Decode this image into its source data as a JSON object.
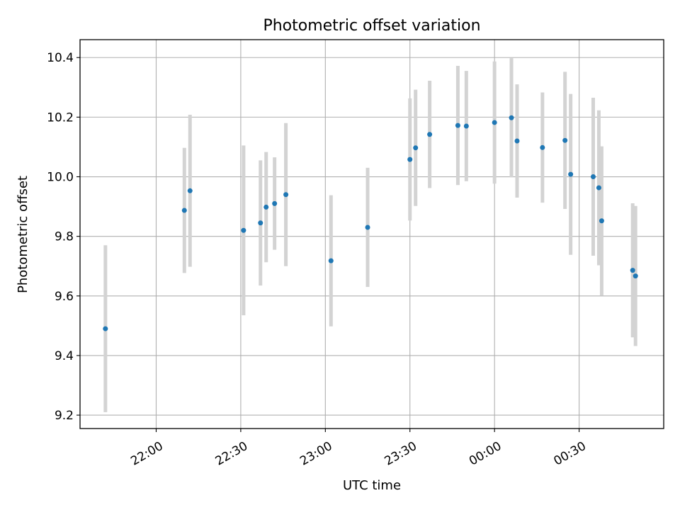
{
  "chart_data": {
    "type": "scatter",
    "title": "Photometric offset variation",
    "xlabel": "UTC time",
    "ylabel": "Photometric offset",
    "grid": true,
    "x_tick_labels": [
      "22:00",
      "22:30",
      "23:00",
      "23:30",
      "00:00",
      "00:30"
    ],
    "y_tick_labels": [
      "9.2",
      "9.4",
      "9.6",
      "9.8",
      "10.0",
      "10.2",
      "10.4"
    ],
    "ylim": [
      9.155,
      10.46
    ],
    "xlim": [
      "21:33",
      "01:00"
    ],
    "colors": {
      "point": "#1f77b4",
      "errorbar": "#d3d3d3",
      "grid": "#b0b0b0"
    },
    "series": [
      {
        "points": [
          {
            "x": "21:42",
            "y": 9.49,
            "err": 0.28
          },
          {
            "x": "22:10",
            "y": 9.887,
            "err": 0.21
          },
          {
            "x": "22:12",
            "y": 9.953,
            "err": 0.255
          },
          {
            "x": "22:31",
            "y": 9.82,
            "err": 0.285
          },
          {
            "x": "22:37",
            "y": 9.845,
            "err": 0.21
          },
          {
            "x": "22:39",
            "y": 9.898,
            "err": 0.185
          },
          {
            "x": "22:42",
            "y": 9.91,
            "err": 0.155
          },
          {
            "x": "22:46",
            "y": 9.94,
            "err": 0.24
          },
          {
            "x": "23:02",
            "y": 9.718,
            "err": 0.22
          },
          {
            "x": "23:15",
            "y": 9.83,
            "err": 0.2
          },
          {
            "x": "23:30",
            "y": 10.058,
            "err": 0.205
          },
          {
            "x": "23:32",
            "y": 10.097,
            "err": 0.195
          },
          {
            "x": "23:37",
            "y": 10.142,
            "err": 0.18
          },
          {
            "x": "23:47",
            "y": 10.172,
            "err": 0.2
          },
          {
            "x": "23:50",
            "y": 10.17,
            "err": 0.185
          },
          {
            "x": "00:00",
            "y": 10.182,
            "err": 0.205
          },
          {
            "x": "00:06",
            "y": 10.198,
            "err": 0.2
          },
          {
            "x": "00:08",
            "y": 10.12,
            "err": 0.19
          },
          {
            "x": "00:17",
            "y": 10.098,
            "err": 0.185
          },
          {
            "x": "00:25",
            "y": 10.122,
            "err": 0.23
          },
          {
            "x": "00:27",
            "y": 10.008,
            "err": 0.27
          },
          {
            "x": "00:35",
            "y": 10.0,
            "err": 0.265
          },
          {
            "x": "00:37",
            "y": 9.963,
            "err": 0.26
          },
          {
            "x": "00:38",
            "y": 9.852,
            "err": 0.25
          },
          {
            "x": "00:49",
            "y": 9.686,
            "err": 0.225
          },
          {
            "x": "00:50",
            "y": 9.667,
            "err": 0.235
          }
        ]
      }
    ]
  }
}
